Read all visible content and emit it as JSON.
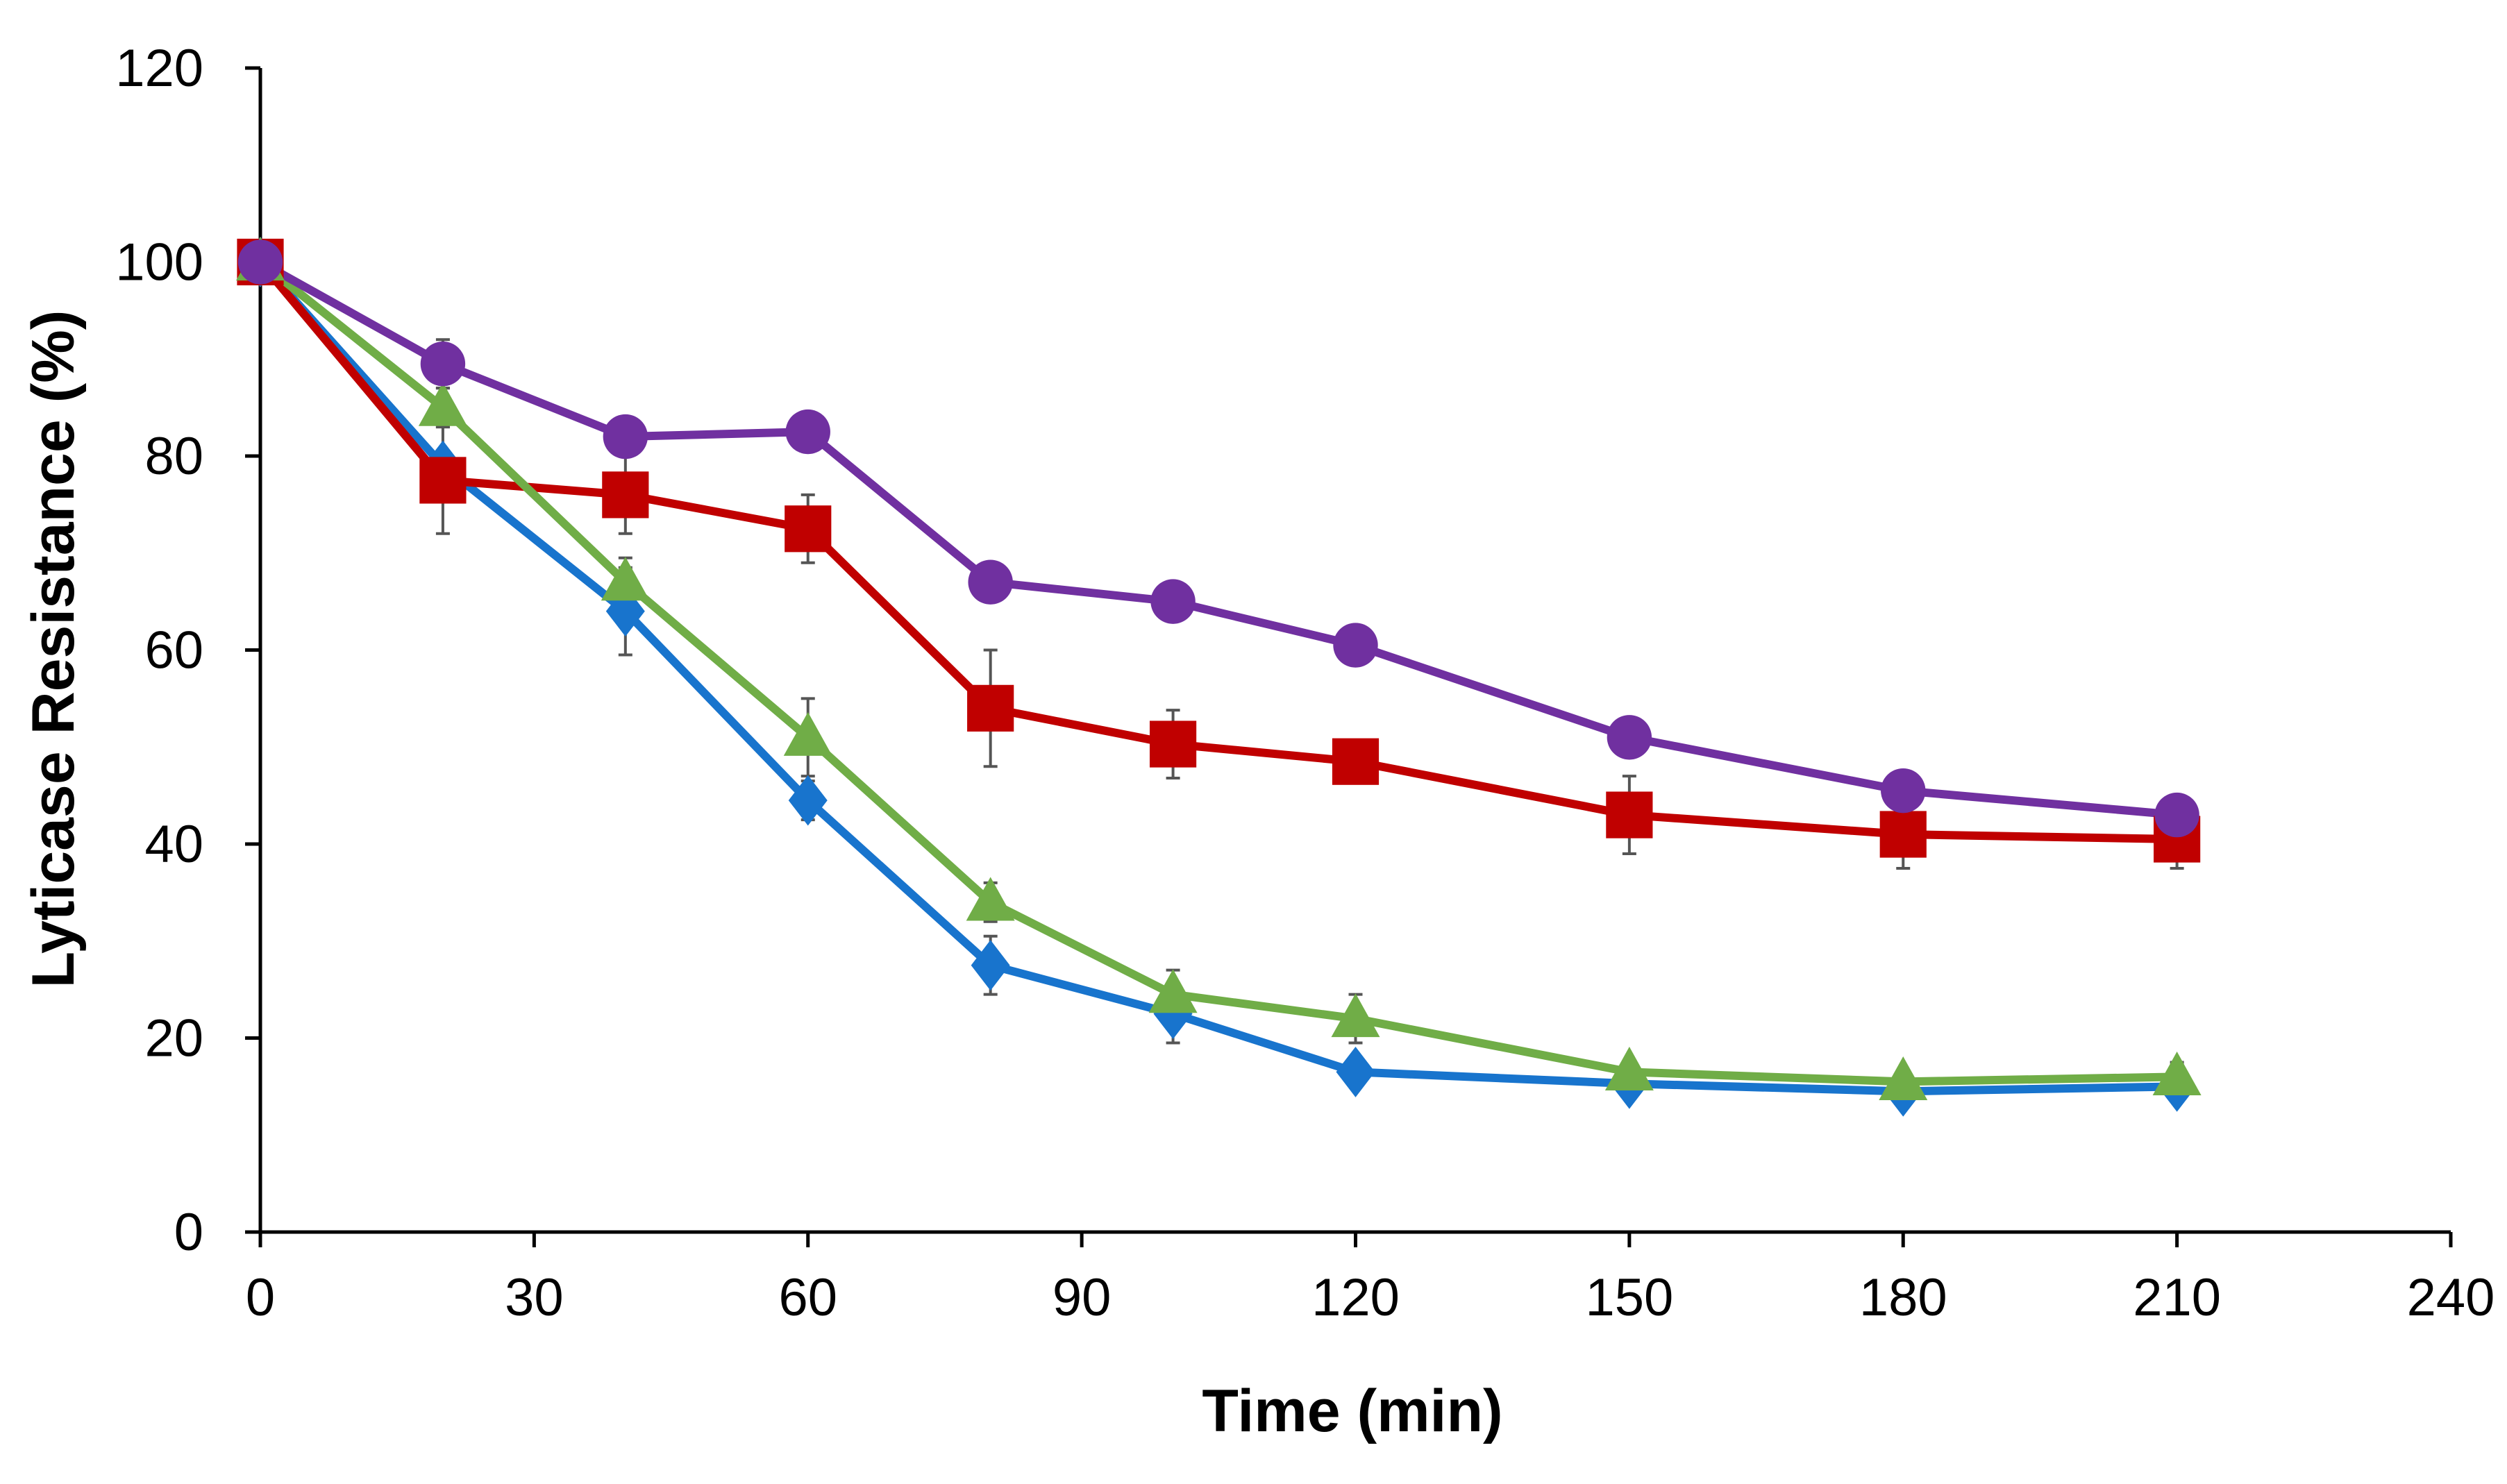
{
  "chart_data": {
    "type": "line",
    "title": "",
    "xlabel": "Time (min)",
    "ylabel": "Lyticase Resistance (%)",
    "xlim": [
      0,
      240
    ],
    "ylim": [
      0,
      120
    ],
    "x_ticks": [
      0,
      30,
      60,
      90,
      120,
      150,
      180,
      210,
      240
    ],
    "y_ticks": [
      0,
      20,
      40,
      60,
      80,
      100,
      120
    ],
    "x_tick_labels": [
      "0",
      "30",
      "60",
      "90",
      "120",
      "150",
      "180",
      "210",
      "240"
    ],
    "y_tick_labels": [
      "0",
      "20",
      "40",
      "60",
      "80",
      "100",
      "120"
    ],
    "grid": false,
    "legend": "none",
    "series": [
      {
        "marker": "diamond",
        "color": "#1874CD",
        "x": [
          0,
          20,
          40,
          60,
          80,
          100,
          120,
          150,
          180,
          210
        ],
        "y": [
          100,
          79,
          64,
          44.5,
          27.5,
          22.5,
          16.5,
          15.3,
          14.5,
          15
        ],
        "err": [
          0,
          1.5,
          4.5,
          2,
          3,
          3,
          1.5,
          1,
          1,
          1
        ]
      },
      {
        "marker": "square",
        "color": "#C00000",
        "x": [
          0,
          20,
          40,
          60,
          80,
          100,
          120,
          150,
          180,
          210
        ],
        "y": [
          100,
          77.5,
          76,
          72.5,
          54,
          50.3,
          48.5,
          43,
          41,
          40.5
        ],
        "err": [
          0,
          5.5,
          4,
          3.5,
          6,
          3.5,
          1.5,
          4,
          3.5,
          3
        ]
      },
      {
        "marker": "triangle",
        "color": "#70AD47",
        "x": [
          0,
          20,
          40,
          60,
          80,
          100,
          120,
          150,
          180,
          210
        ],
        "y": [
          100,
          85,
          67,
          51,
          34,
          24.5,
          22,
          16.5,
          15.5,
          16
        ],
        "err": [
          0,
          2,
          2.5,
          4,
          2,
          2.5,
          2.5,
          1,
          1,
          1.5
        ]
      },
      {
        "marker": "circle",
        "color": "#7030A0",
        "x": [
          0,
          20,
          40,
          60,
          80,
          100,
          120,
          150,
          180,
          210
        ],
        "y": [
          100,
          89.5,
          82,
          82.5,
          67,
          65,
          60.5,
          51,
          45.5,
          43
        ],
        "err": [
          0,
          2.5,
          1.5,
          1.5,
          1,
          1,
          1.5,
          1,
          1,
          1
        ]
      }
    ]
  }
}
